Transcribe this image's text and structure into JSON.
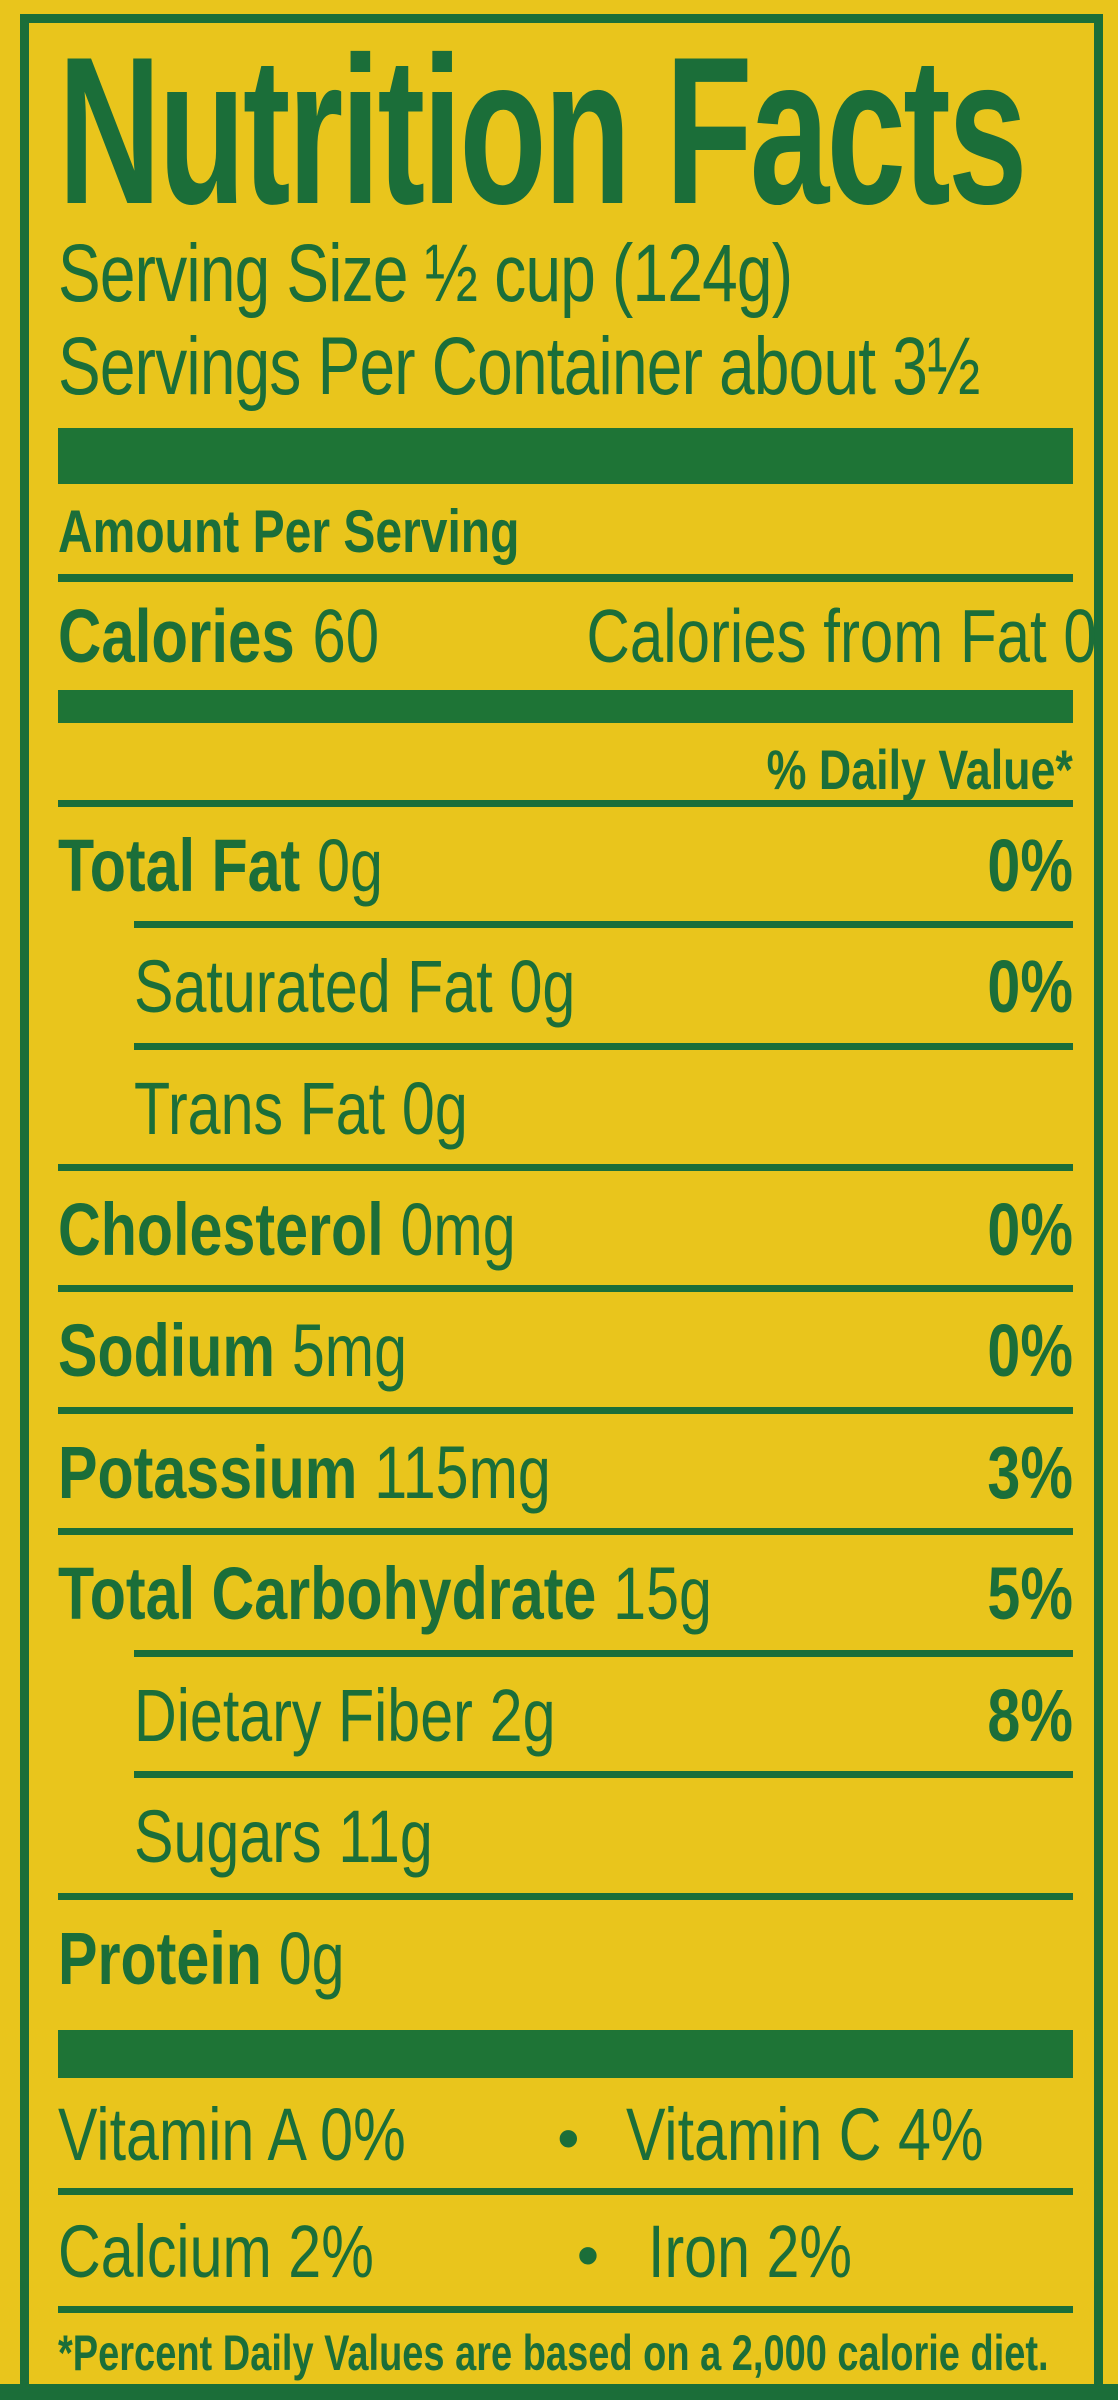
{
  "colors": {
    "background_yellow": "#e9c51c",
    "text_green": "#1b6e39",
    "bar_green": "#1e7436"
  },
  "label": {
    "title": "Nutrition Facts",
    "serving_size": "Serving Size ½ cup (124g)",
    "servings_per_container": "Servings Per Container about 3½",
    "amount_per_serving": "Amount Per Serving",
    "calories": {
      "label": "Calories",
      "value": "60",
      "from_fat": "Calories from Fat 0"
    },
    "daily_value_header": "% Daily Value*",
    "nutrients": [
      {
        "name": "Total Fat",
        "amount": "0g",
        "daily_value": "0%"
      },
      {
        "name": "Saturated Fat",
        "amount": "0g",
        "daily_value": "0%"
      },
      {
        "name": "Trans Fat",
        "amount": "0g",
        "daily_value": ""
      },
      {
        "name": "Cholesterol",
        "amount": "0mg",
        "daily_value": "0%"
      },
      {
        "name": "Sodium",
        "amount": "5mg",
        "daily_value": "0%"
      },
      {
        "name": "Potassium",
        "amount": "115mg",
        "daily_value": "3%"
      },
      {
        "name": "Total Carbohydrate",
        "amount": "15g",
        "daily_value": "5%"
      },
      {
        "name": "Dietary Fiber",
        "amount": "2g",
        "daily_value": "8%"
      },
      {
        "name": "Sugars",
        "amount": "11g",
        "daily_value": ""
      },
      {
        "name": "Protein",
        "amount": "0g",
        "daily_value": ""
      }
    ],
    "micronutrients": {
      "bullet": "•",
      "rows": [
        {
          "left": "Vitamin A 0%",
          "right": "Vitamin C 4%"
        },
        {
          "left": "Calcium 2%",
          "right": "Iron 2%"
        }
      ]
    },
    "footnote": "*Percent Daily Values are based on a 2,000 calorie diet."
  }
}
